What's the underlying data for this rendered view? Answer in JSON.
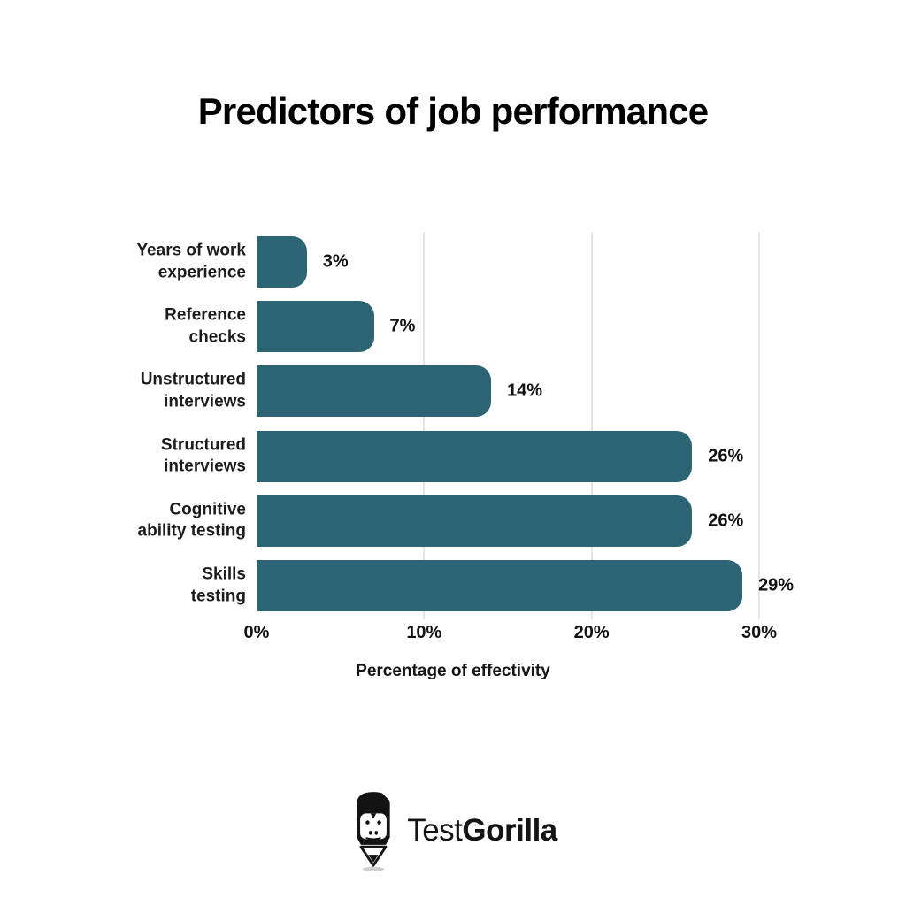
{
  "title": "Predictors of job performance",
  "chart_data": {
    "type": "bar",
    "orientation": "horizontal",
    "title": "Predictors of job performance",
    "categories": [
      "Years of work\nexperience",
      "Reference\nchecks",
      "Unstructured\ninterviews",
      "Structured\ninterviews",
      "Cognitive\nability testing",
      "Skills\ntesting"
    ],
    "values": [
      3,
      7,
      14,
      26,
      26,
      29
    ],
    "value_labels": [
      "3%",
      "7%",
      "14%",
      "26%",
      "26%",
      "29%"
    ],
    "xlabel": "Percentage of effectivity",
    "x_ticks": [
      0,
      10,
      20,
      30
    ],
    "x_tick_labels": [
      "0%",
      "10%",
      "20%",
      "30%"
    ],
    "xlim": [
      0,
      30
    ],
    "grid": true,
    "legend": false,
    "gridline_positions": [
      10,
      20,
      30
    ],
    "bar_color": "#2d6474",
    "grid_color": "#e5e5e5",
    "text_color": "#1c1c1c",
    "background_color": "#ffffff"
  },
  "logo": {
    "icon": "pencil-gorilla-icon",
    "text_regular": "Test",
    "text_bold": "Gorilla"
  }
}
